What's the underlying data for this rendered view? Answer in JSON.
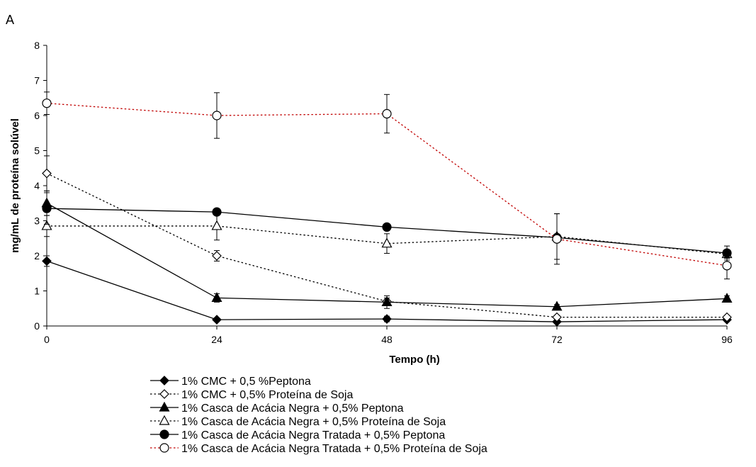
{
  "chart_data": {
    "type": "line",
    "panel_label": "A",
    "title": "",
    "xlabel": "Tempo (h)",
    "ylabel": "mg/mL de proteína solúvel",
    "x": [
      0,
      24,
      48,
      72,
      96
    ],
    "x_ticks": [
      "0",
      "24",
      "48",
      "72",
      "96"
    ],
    "ylim": [
      0,
      8
    ],
    "y_ticks": [
      "0",
      "1",
      "2",
      "3",
      "4",
      "5",
      "6",
      "7",
      "8"
    ],
    "grid": false,
    "legend_position": "bottom",
    "series": [
      {
        "name": "1% CMC + 0,5 %Peptona",
        "values": [
          1.85,
          0.18,
          0.2,
          0.12,
          0.18
        ],
        "errors": [
          0.15,
          0.05,
          0.08,
          0.05,
          0.05
        ],
        "marker": "diamond",
        "fill": "filled",
        "line": "solid",
        "color": "#000000"
      },
      {
        "name": "1% CMC + 0,5% Proteína de Soja",
        "values": [
          4.35,
          2.0,
          0.7,
          0.25,
          0.25
        ],
        "errors": [
          0.5,
          0.15,
          0.1,
          0.05,
          0.05
        ],
        "marker": "diamond",
        "fill": "open",
        "line": "dotted",
        "color": "#000000"
      },
      {
        "name": "1% Casca de Acácia Negra + 0,5% Peptona",
        "values": [
          3.5,
          0.8,
          0.68,
          0.55,
          0.78
        ],
        "errors": [
          0.35,
          0.12,
          0.18,
          0.06,
          0.08
        ],
        "marker": "triangle",
        "fill": "filled",
        "line": "solid",
        "color": "#000000"
      },
      {
        "name": "1% Casca de Acácia Negra + 0,5% Proteína de Soja",
        "values": [
          2.85,
          2.85,
          2.35,
          2.55,
          2.05
        ],
        "errors": [
          0.3,
          0.4,
          0.28,
          0.65,
          0.12
        ],
        "marker": "triangle",
        "fill": "open",
        "line": "dotted",
        "color": "#000000"
      },
      {
        "name": "1% Casca de Acácia Negra Tratada + 0,5% Peptona",
        "values": [
          3.35,
          3.25,
          2.82,
          2.52,
          2.08
        ],
        "errors": [
          0.45,
          0.05,
          0.05,
          0.05,
          0.2
        ],
        "marker": "circle",
        "fill": "filled",
        "line": "solid",
        "color": "#000000"
      },
      {
        "name": "1% Casca de Acácia Negra Tratada  + 0,5% Proteína de Soja",
        "values": [
          6.35,
          6.0,
          6.05,
          2.48,
          1.72
        ],
        "errors": [
          0.32,
          0.65,
          0.55,
          0.72,
          0.38
        ],
        "marker": "circle",
        "fill": "open",
        "line": "dotted",
        "color": "#c00000"
      }
    ]
  }
}
